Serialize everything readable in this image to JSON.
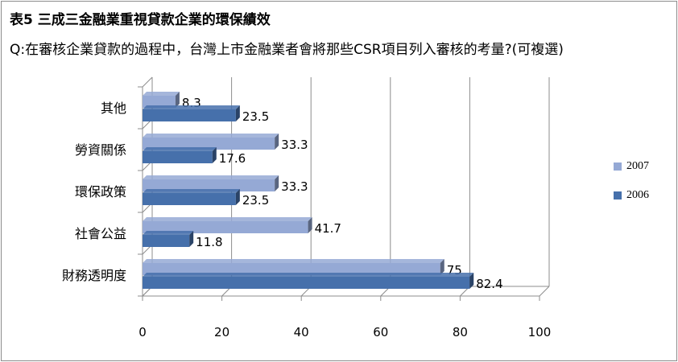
{
  "chart_data": {
    "type": "bar",
    "orientation": "horizontal",
    "title": "表5 三成三金融業重視貸款企業的環保績效",
    "subtitle": "Q:在審核企業貸款的過程中，台灣上市金融業者會將那些CSR項目列入審核的考量?(可複選)",
    "categories": [
      "其他",
      "勞資關係",
      "環保政策",
      "社會公益",
      "財務透明度"
    ],
    "series": [
      {
        "name": "2007",
        "color": "#95a9d5",
        "values": [
          8.3,
          33.3,
          33.3,
          41.7,
          75
        ]
      },
      {
        "name": "2006",
        "color": "#4670ab",
        "values": [
          23.5,
          17.6,
          23.5,
          11.8,
          82.4
        ]
      }
    ],
    "data_labels": [
      [
        "8.3",
        "33.3",
        "33.3",
        "41.7",
        "75"
      ],
      [
        "23.5",
        "17.6",
        "23.5",
        "11.8",
        "82.4"
      ]
    ],
    "xlim": [
      0,
      100
    ],
    "xticks": [
      "0",
      "20",
      "40",
      "60",
      "80",
      "100"
    ],
    "grid": true,
    "legend_position": "right"
  }
}
